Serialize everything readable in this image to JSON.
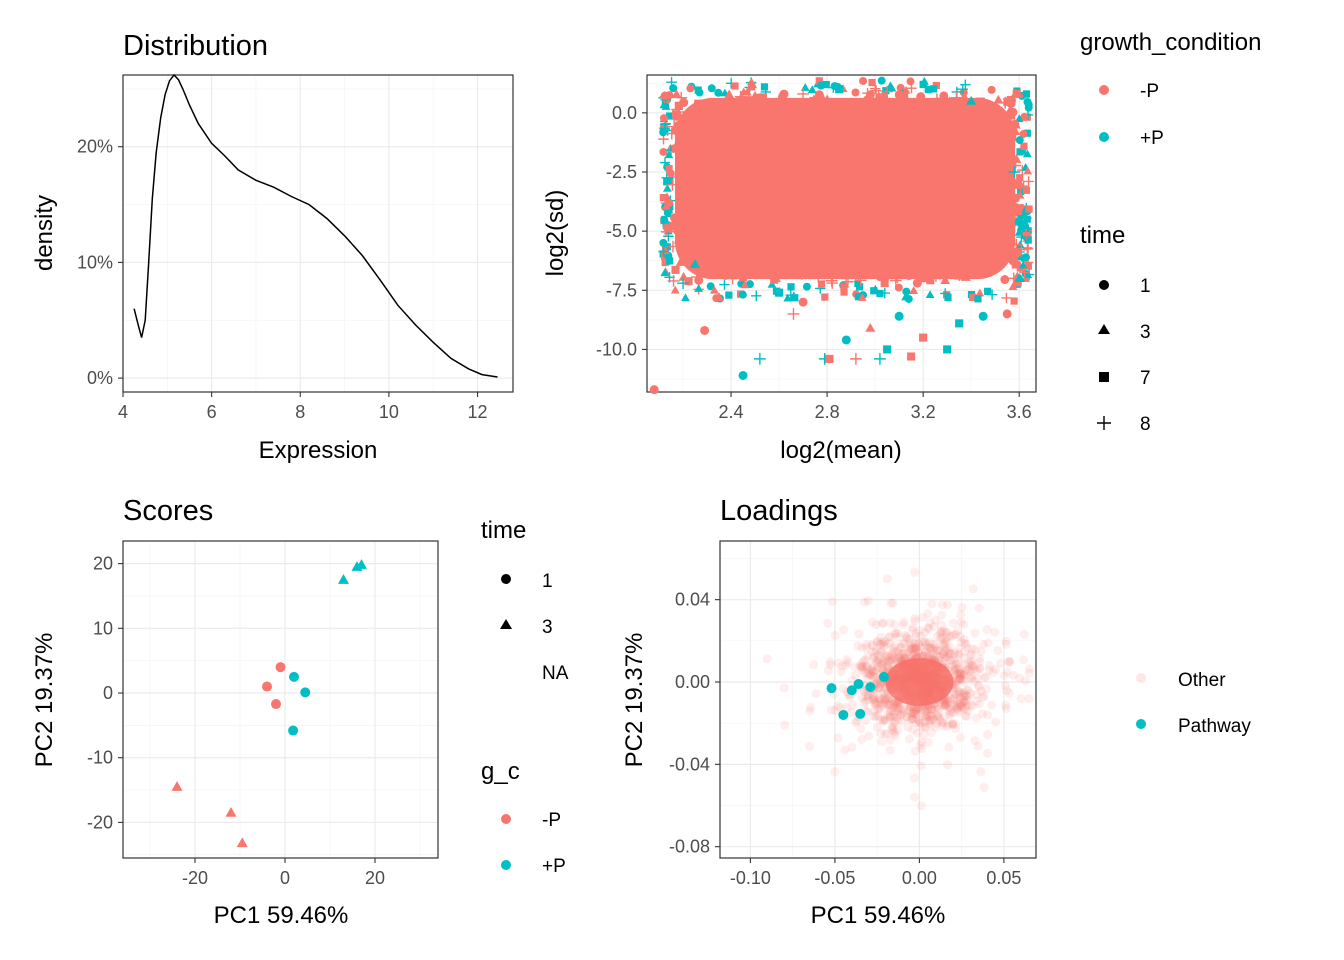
{
  "colors": {
    "minusP": "#F8766D",
    "plusP": "#00BFC4",
    "line": "#000000"
  },
  "chart_data": [
    {
      "id": "distribution",
      "type": "line",
      "title": "Distribution",
      "xlabel": "Expression",
      "ylabel": "density",
      "xlim": [
        4.0,
        12.8
      ],
      "ylim": [
        -0.012,
        0.262
      ],
      "xticks": [
        4,
        6,
        8,
        10,
        12
      ],
      "yticks": [
        0,
        0.1,
        0.2
      ],
      "ytick_labels": [
        "0%",
        "10%",
        "20%"
      ],
      "series": [
        {
          "name": "density",
          "x": [
            4.25,
            4.35,
            4.42,
            4.5,
            4.58,
            4.66,
            4.75,
            4.85,
            4.95,
            5.05,
            5.15,
            5.25,
            5.35,
            5.5,
            5.7,
            6.0,
            6.3,
            6.6,
            7.0,
            7.4,
            7.8,
            8.2,
            8.6,
            9.0,
            9.4,
            9.8,
            10.2,
            10.6,
            11.0,
            11.4,
            11.8,
            12.1,
            12.45
          ],
          "y": [
            0.06,
            0.045,
            0.035,
            0.05,
            0.1,
            0.155,
            0.195,
            0.225,
            0.245,
            0.257,
            0.262,
            0.258,
            0.25,
            0.236,
            0.22,
            0.203,
            0.192,
            0.18,
            0.171,
            0.165,
            0.157,
            0.15,
            0.138,
            0.123,
            0.106,
            0.085,
            0.063,
            0.046,
            0.031,
            0.017,
            0.008,
            0.003,
            0.001
          ]
        }
      ]
    },
    {
      "id": "mean-sd",
      "type": "scatter",
      "title": "",
      "xlabel": "log2(mean)",
      "ylabel": "log2(sd)",
      "xlim": [
        2.05,
        3.67
      ],
      "ylim": [
        -11.8,
        1.6
      ],
      "xticks": [
        2.4,
        2.8,
        3.2,
        3.6
      ],
      "yticks": [
        0.0,
        -2.5,
        -5.0,
        -7.5,
        -10.0
      ],
      "ytick_labels": [
        "0.0",
        "-2.5",
        "-5.0",
        "-7.5",
        "-10.0"
      ],
      "bulk_region": {
        "x": [
          2.15,
          3.6
        ],
        "y": [
          -7.2,
          0.8
        ],
        "group": "-P"
      },
      "points": [
        {
          "x": 2.08,
          "y": -11.7,
          "g": "-P",
          "t": "1"
        },
        {
          "x": 2.29,
          "y": -9.2,
          "g": "-P",
          "t": "1"
        },
        {
          "x": 2.45,
          "y": -11.1,
          "g": "+P",
          "t": "1"
        },
        {
          "x": 2.52,
          "y": -10.4,
          "g": "+P",
          "t": "8"
        },
        {
          "x": 2.66,
          "y": -8.5,
          "g": "-P",
          "t": "8"
        },
        {
          "x": 2.79,
          "y": -10.4,
          "g": "+P",
          "t": "8"
        },
        {
          "x": 2.92,
          "y": -10.4,
          "g": "-P",
          "t": "8"
        },
        {
          "x": 2.81,
          "y": -10.4,
          "g": "-P",
          "t": "7"
        },
        {
          "x": 2.88,
          "y": -9.6,
          "g": "+P",
          "t": "1"
        },
        {
          "x": 3.02,
          "y": -10.4,
          "g": "+P",
          "t": "8"
        },
        {
          "x": 3.05,
          "y": -10.0,
          "g": "+P",
          "t": "7"
        },
        {
          "x": 3.15,
          "y": -10.3,
          "g": "-P",
          "t": "7"
        },
        {
          "x": 3.2,
          "y": -9.5,
          "g": "-P",
          "t": "7"
        },
        {
          "x": 3.3,
          "y": -10.0,
          "g": "+P",
          "t": "7"
        },
        {
          "x": 3.35,
          "y": -8.9,
          "g": "+P",
          "t": "7"
        },
        {
          "x": 3.55,
          "y": -8.5,
          "g": "-P",
          "t": "1"
        },
        {
          "x": 3.6,
          "y": -7.0,
          "g": "+P",
          "t": "3"
        },
        {
          "x": 2.2,
          "y": -7.2,
          "g": "+P",
          "t": "8"
        },
        {
          "x": 2.35,
          "y": -7.8,
          "g": "-P",
          "t": "3"
        },
        {
          "x": 2.6,
          "y": -7.6,
          "g": "+P",
          "t": "7"
        },
        {
          "x": 2.98,
          "y": -9.1,
          "g": "-P",
          "t": "3"
        },
        {
          "x": 3.45,
          "y": -8.6,
          "g": "+P",
          "t": "1"
        },
        {
          "x": 3.1,
          "y": -8.6,
          "g": "+P",
          "t": "1"
        },
        {
          "x": 2.7,
          "y": -8.0,
          "g": "-P",
          "t": "1"
        },
        {
          "x": 2.25,
          "y": -6.4,
          "g": "+P",
          "t": "3"
        },
        {
          "x": 2.5,
          "y": 0.7,
          "g": "-P",
          "t": "3"
        },
        {
          "x": 2.85,
          "y": 1.0,
          "g": "+P",
          "t": "7"
        },
        {
          "x": 3.05,
          "y": 0.9,
          "g": "-P",
          "t": "8"
        },
        {
          "x": 3.4,
          "y": 0.5,
          "g": "+P",
          "t": "3"
        },
        {
          "x": 2.7,
          "y": 0.8,
          "g": "-P",
          "t": "8"
        },
        {
          "x": 3.58,
          "y": -2.5,
          "g": "+P",
          "t": "8"
        },
        {
          "x": 3.6,
          "y": -4.6,
          "g": "+P",
          "t": "1"
        },
        {
          "x": 2.14,
          "y": -3.8,
          "g": "-P",
          "t": "1"
        }
      ]
    },
    {
      "id": "scores",
      "type": "scatter",
      "title": "Scores",
      "xlabel": "PC1 59.46%",
      "ylabel": "PC2 19.37%",
      "xlim": [
        -36,
        34
      ],
      "ylim": [
        -25.5,
        23.5
      ],
      "xticks": [
        -20,
        0,
        20
      ],
      "yticks": [
        20,
        10,
        0,
        -10,
        -20
      ],
      "points": [
        {
          "x": -1,
          "y": 4,
          "g": "-P",
          "t": "1"
        },
        {
          "x": -4,
          "y": 1,
          "g": "-P",
          "t": "1"
        },
        {
          "x": -2,
          "y": -1.7,
          "g": "-P",
          "t": "1"
        },
        {
          "x": 2,
          "y": 2.5,
          "g": "+P",
          "t": "1"
        },
        {
          "x": 4.5,
          "y": 0.1,
          "g": "+P",
          "t": "1"
        },
        {
          "x": 1.8,
          "y": -5.8,
          "g": "+P",
          "t": "1"
        },
        {
          "x": -24,
          "y": -14.5,
          "g": "-P",
          "t": "3"
        },
        {
          "x": -12,
          "y": -18.5,
          "g": "-P",
          "t": "3"
        },
        {
          "x": -9.5,
          "y": -23.2,
          "g": "-P",
          "t": "3"
        },
        {
          "x": 13,
          "y": 17.5,
          "g": "+P",
          "t": "3"
        },
        {
          "x": 16,
          "y": 19.5,
          "g": "+P",
          "t": "3"
        },
        {
          "x": 17,
          "y": 19.8,
          "g": "+P",
          "t": "3"
        }
      ]
    },
    {
      "id": "loadings",
      "type": "scatter",
      "title": "Loadings",
      "xlabel": "PC1 59.46%",
      "ylabel": "PC2 19.37%",
      "xlim": [
        -0.118,
        0.069
      ],
      "ylim": [
        -0.0855,
        0.0685
      ],
      "xticks": [
        -0.1,
        -0.05,
        0.0,
        0.05
      ],
      "xtick_labels": [
        "-0.10",
        "-0.05",
        "0.00",
        "0.05"
      ],
      "yticks": [
        0.04,
        0.0,
        -0.04,
        -0.08
      ],
      "ytick_labels": [
        "0.04",
        "0.00",
        "-0.04",
        "-0.08"
      ],
      "other_cloud": {
        "center": [
          0.0,
          0.0
        ],
        "spread": [
          0.018,
          0.012
        ],
        "count": 1200,
        "alpha": 0.12
      },
      "pathway_points": [
        {
          "x": -0.052,
          "y": -0.003
        },
        {
          "x": -0.045,
          "y": -0.016
        },
        {
          "x": -0.04,
          "y": -0.004
        },
        {
          "x": -0.036,
          "y": -0.001
        },
        {
          "x": -0.035,
          "y": -0.0155
        },
        {
          "x": -0.029,
          "y": -0.0025
        },
        {
          "x": -0.021,
          "y": 0.0025
        }
      ]
    }
  ],
  "legends": {
    "top": {
      "group_title": "growth_condition",
      "group_items": [
        "-P",
        "+P"
      ],
      "time_title": "time",
      "time_items": [
        "1",
        "3",
        "7",
        "8"
      ]
    },
    "scores": {
      "time_title": "time",
      "time_items": [
        "1",
        "3",
        "NA"
      ],
      "group_title": "g_c",
      "group_items": [
        "-P",
        "+P"
      ]
    },
    "loadings": {
      "items": [
        "Other",
        "Pathway"
      ]
    }
  }
}
